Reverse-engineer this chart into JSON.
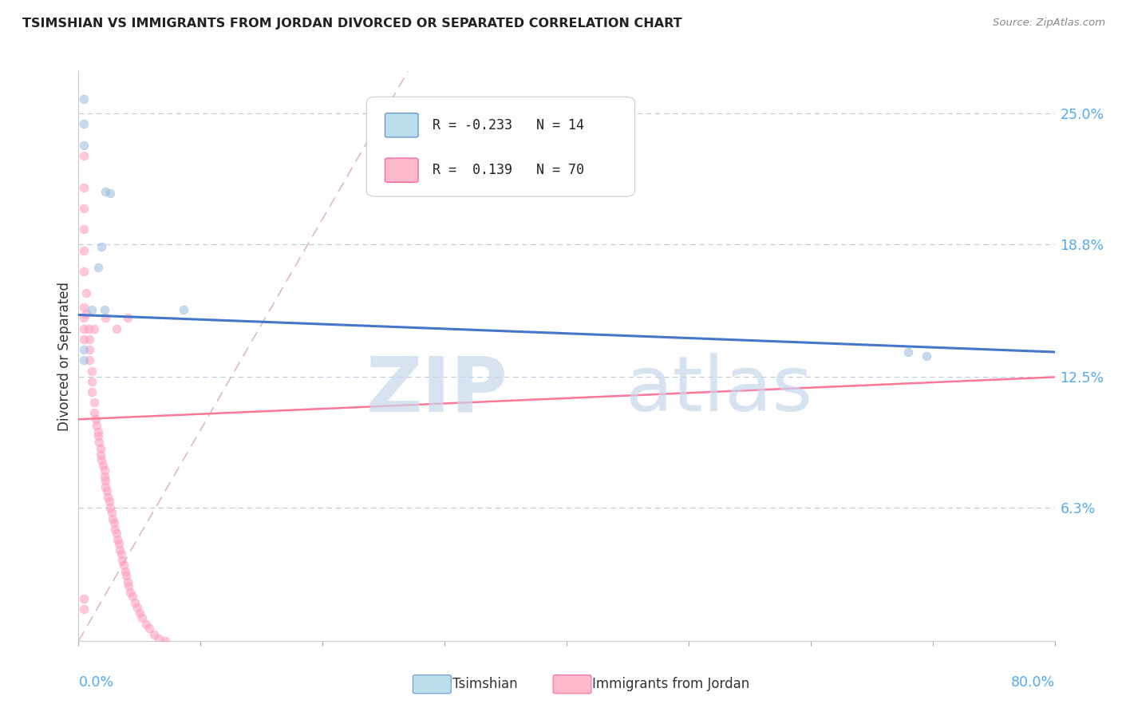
{
  "title": "TSIMSHIAN VS IMMIGRANTS FROM JORDAN DIVORCED OR SEPARATED CORRELATION CHART",
  "source": "Source: ZipAtlas.com",
  "ylabel": "Divorced or Separated",
  "y_tick_labels": [
    "25.0%",
    "18.8%",
    "12.5%",
    "6.3%"
  ],
  "y_tick_values": [
    0.25,
    0.188,
    0.125,
    0.063
  ],
  "x_lim": [
    0.0,
    0.8
  ],
  "y_lim": [
    0.0,
    0.27
  ],
  "legend_label1": "Tsimshian",
  "legend_label2": "Immigrants from Jordan",
  "blue_scatter_color": "#99BBDD",
  "pink_scatter_color": "#FF99BB",
  "blue_line_color": "#4477CC",
  "pink_line_color": "#FF7799",
  "diagonal_color": "#DDBBBB",
  "tsimshian_x": [
    0.022,
    0.026,
    0.019,
    0.016,
    0.011,
    0.004,
    0.004,
    0.004,
    0.021,
    0.086,
    0.68,
    0.695,
    0.004,
    0.004
  ],
  "tsimshian_y": [
    0.213,
    0.212,
    0.187,
    0.177,
    0.157,
    0.257,
    0.245,
    0.235,
    0.157,
    0.157,
    0.137,
    0.135,
    0.138,
    0.133
  ],
  "jordan_x": [
    0.004,
    0.004,
    0.004,
    0.004,
    0.004,
    0.004,
    0.006,
    0.006,
    0.008,
    0.009,
    0.009,
    0.009,
    0.011,
    0.011,
    0.011,
    0.013,
    0.013,
    0.014,
    0.015,
    0.016,
    0.016,
    0.017,
    0.018,
    0.018,
    0.019,
    0.02,
    0.021,
    0.021,
    0.022,
    0.022,
    0.023,
    0.024,
    0.025,
    0.026,
    0.027,
    0.028,
    0.029,
    0.03,
    0.031,
    0.032,
    0.033,
    0.034,
    0.035,
    0.036,
    0.037,
    0.038,
    0.039,
    0.04,
    0.041,
    0.042,
    0.044,
    0.046,
    0.048,
    0.05,
    0.052,
    0.055,
    0.058,
    0.062,
    0.066,
    0.071,
    0.004,
    0.004,
    0.004,
    0.004,
    0.013,
    0.022,
    0.031,
    0.04,
    0.004,
    0.004
  ],
  "jordan_y": [
    0.23,
    0.215,
    0.205,
    0.195,
    0.185,
    0.175,
    0.165,
    0.155,
    0.148,
    0.143,
    0.138,
    0.133,
    0.128,
    0.123,
    0.118,
    0.113,
    0.108,
    0.105,
    0.102,
    0.099,
    0.097,
    0.094,
    0.091,
    0.088,
    0.086,
    0.083,
    0.081,
    0.078,
    0.076,
    0.073,
    0.071,
    0.068,
    0.066,
    0.063,
    0.061,
    0.058,
    0.056,
    0.053,
    0.051,
    0.048,
    0.046,
    0.043,
    0.041,
    0.038,
    0.036,
    0.033,
    0.031,
    0.028,
    0.026,
    0.023,
    0.021,
    0.018,
    0.016,
    0.013,
    0.011,
    0.008,
    0.006,
    0.003,
    0.001,
    0.0,
    0.158,
    0.153,
    0.148,
    0.143,
    0.148,
    0.153,
    0.148,
    0.153,
    0.02,
    0.015
  ]
}
